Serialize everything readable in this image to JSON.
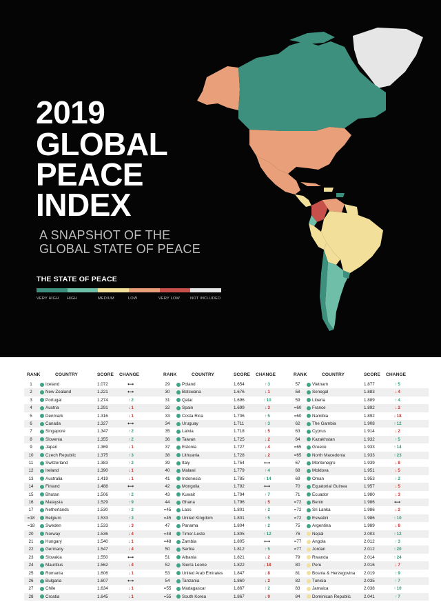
{
  "poster": {
    "title_lines": [
      "2019",
      "GLOBAL",
      "PEACE",
      "INDEX"
    ],
    "subtitle_lines": [
      "A SNAPSHOT OF THE",
      "GLOBAL STATE OF PEACE"
    ],
    "state_title": "THE STATE OF PEACE",
    "legend": [
      {
        "label": "VERY HIGH",
        "color": "#3d8f7e"
      },
      {
        "label": "HIGH",
        "color": "#6fbfa8"
      },
      {
        "label": "MEDIUM",
        "color": "#f2df9a"
      },
      {
        "label": "LOW",
        "color": "#e9a07a"
      },
      {
        "label": "VERY LOW",
        "color": "#c7504a"
      },
      {
        "label": "NOT INCLUDED",
        "color": "#e6e6e6"
      }
    ]
  },
  "table": {
    "headers": {
      "rank": "RANK",
      "country": "COUNTRY",
      "score": "SCORE",
      "change": "CHANGE"
    },
    "symbols": {
      "up": "↑",
      "down": "↓",
      "same": "⟷"
    },
    "columns": [
      [
        {
          "rank": "1",
          "country": "Iceland",
          "score": "1.072",
          "dir": "same",
          "amt": "",
          "level": "vh"
        },
        {
          "rank": "2",
          "country": "New Zealand",
          "score": "1.221",
          "dir": "same",
          "amt": "",
          "level": "vh"
        },
        {
          "rank": "3",
          "country": "Portugal",
          "score": "1.274",
          "dir": "up",
          "amt": "2",
          "level": "vh"
        },
        {
          "rank": "4",
          "country": "Austria",
          "score": "1.291",
          "dir": "down",
          "amt": "1",
          "level": "vh"
        },
        {
          "rank": "5",
          "country": "Denmark",
          "score": "1.316",
          "dir": "down",
          "amt": "1",
          "level": "vh"
        },
        {
          "rank": "6",
          "country": "Canada",
          "score": "1.327",
          "dir": "same",
          "amt": "",
          "level": "vh"
        },
        {
          "rank": "7",
          "country": "Singapore",
          "score": "1.347",
          "dir": "up",
          "amt": "2",
          "level": "vh"
        },
        {
          "rank": "8",
          "country": "Slovenia",
          "score": "1.355",
          "dir": "up",
          "amt": "2",
          "level": "vh"
        },
        {
          "rank": "9",
          "country": "Japan",
          "score": "1.369",
          "dir": "down",
          "amt": "1",
          "level": "vh"
        },
        {
          "rank": "10",
          "country": "Czech Republic",
          "score": "1.375",
          "dir": "up",
          "amt": "3",
          "level": "vh"
        },
        {
          "rank": "11",
          "country": "Switzerland",
          "score": "1.383",
          "dir": "up",
          "amt": "2",
          "level": "vh"
        },
        {
          "rank": "12",
          "country": "Ireland",
          "score": "1.390",
          "dir": "down",
          "amt": "1",
          "level": "vh"
        },
        {
          "rank": "13",
          "country": "Australia",
          "score": "1.419",
          "dir": "down",
          "amt": "1",
          "level": "vh"
        },
        {
          "rank": "14",
          "country": "Finland",
          "score": "1.488",
          "dir": "same",
          "amt": "",
          "level": "vh"
        },
        {
          "rank": "15",
          "country": "Bhutan",
          "score": "1.506",
          "dir": "up",
          "amt": "2",
          "level": "vh"
        },
        {
          "rank": "16",
          "country": "Malaysia",
          "score": "1.529",
          "dir": "up",
          "amt": "9",
          "level": "vh"
        },
        {
          "rank": "17",
          "country": "Netherlands",
          "score": "1.530",
          "dir": "up",
          "amt": "2",
          "level": "vh"
        },
        {
          "rank": "=18",
          "country": "Belgium",
          "score": "1.533",
          "dir": "up",
          "amt": "3",
          "level": "vh"
        },
        {
          "rank": "=18",
          "country": "Sweden",
          "score": "1.533",
          "dir": "down",
          "amt": "3",
          "level": "vh"
        },
        {
          "rank": "20",
          "country": "Norway",
          "score": "1.536",
          "dir": "down",
          "amt": "4",
          "level": "vh"
        },
        {
          "rank": "21",
          "country": "Hungary",
          "score": "1.540",
          "dir": "down",
          "amt": "1",
          "level": "vh"
        },
        {
          "rank": "22",
          "country": "Germany",
          "score": "1.547",
          "dir": "down",
          "amt": "4",
          "level": "vh"
        },
        {
          "rank": "23",
          "country": "Slovakia",
          "score": "1.550",
          "dir": "same",
          "amt": "",
          "level": "vh"
        },
        {
          "rank": "24",
          "country": "Mauritius",
          "score": "1.562",
          "dir": "down",
          "amt": "4",
          "level": "vh"
        },
        {
          "rank": "25",
          "country": "Romania",
          "score": "1.606",
          "dir": "down",
          "amt": "1",
          "level": "vh"
        },
        {
          "rank": "26",
          "country": "Bulgaria",
          "score": "1.607",
          "dir": "same",
          "amt": "",
          "level": "vh"
        },
        {
          "rank": "27",
          "country": "Chile",
          "score": "1.634",
          "dir": "down",
          "amt": "1",
          "level": "vh"
        },
        {
          "rank": "28",
          "country": "Croatia",
          "score": "1.645",
          "dir": "down",
          "amt": "1",
          "level": "vh"
        }
      ],
      [
        {
          "rank": "29",
          "country": "Poland",
          "score": "1.654",
          "dir": "up",
          "amt": "3",
          "level": "vh"
        },
        {
          "rank": "30",
          "country": "Botswana",
          "score": "1.676",
          "dir": "down",
          "amt": "1",
          "level": "vh"
        },
        {
          "rank": "31",
          "country": "Qatar",
          "score": "1.696",
          "dir": "up",
          "amt": "10",
          "level": "vh"
        },
        {
          "rank": "32",
          "country": "Spain",
          "score": "1.699",
          "dir": "down",
          "amt": "3",
          "level": "vh"
        },
        {
          "rank": "33",
          "country": "Costa Rica",
          "score": "1.706",
          "dir": "up",
          "amt": "5",
          "level": "vh"
        },
        {
          "rank": "34",
          "country": "Uruguay",
          "score": "1.711",
          "dir": "up",
          "amt": "3",
          "level": "vh"
        },
        {
          "rank": "35",
          "country": "Latvia",
          "score": "1.718",
          "dir": "down",
          "amt": "5",
          "level": "vh"
        },
        {
          "rank": "36",
          "country": "Taiwan",
          "score": "1.725",
          "dir": "down",
          "amt": "2",
          "level": "vh"
        },
        {
          "rank": "37",
          "country": "Estonia",
          "score": "1.727",
          "dir": "down",
          "amt": "4",
          "level": "vh"
        },
        {
          "rank": "38",
          "country": "Lithuania",
          "score": "1.728",
          "dir": "down",
          "amt": "2",
          "level": "vh"
        },
        {
          "rank": "39",
          "country": "Italy",
          "score": "1.754",
          "dir": "same",
          "amt": "",
          "level": "vh"
        },
        {
          "rank": "40",
          "country": "Malawi",
          "score": "1.779",
          "dir": "up",
          "amt": "4",
          "level": "vh"
        },
        {
          "rank": "41",
          "country": "Indonesia",
          "score": "1.785",
          "dir": "up",
          "amt": "14",
          "level": "vh"
        },
        {
          "rank": "42",
          "country": "Mongolia",
          "score": "1.792",
          "dir": "same",
          "amt": "",
          "level": "vh"
        },
        {
          "rank": "43",
          "country": "Kuwait",
          "score": "1.794",
          "dir": "up",
          "amt": "7",
          "level": "vh"
        },
        {
          "rank": "44",
          "country": "Ghana",
          "score": "1.796",
          "dir": "down",
          "amt": "5",
          "level": "vh"
        },
        {
          "rank": "=45",
          "country": "Laos",
          "score": "1.801",
          "dir": "up",
          "amt": "2",
          "level": "vh"
        },
        {
          "rank": "=45",
          "country": "United Kingdom",
          "score": "1.801",
          "dir": "up",
          "amt": "5",
          "level": "vh"
        },
        {
          "rank": "47",
          "country": "Panama",
          "score": "1.804",
          "dir": "up",
          "amt": "2",
          "level": "vh"
        },
        {
          "rank": "=48",
          "country": "Timor-Leste",
          "score": "1.805",
          "dir": "up",
          "amt": "12",
          "level": "vh"
        },
        {
          "rank": "=48",
          "country": "Zambia",
          "score": "1.805",
          "dir": "same",
          "amt": "",
          "level": "vh"
        },
        {
          "rank": "50",
          "country": "Serbia",
          "score": "1.812",
          "dir": "up",
          "amt": "5",
          "level": "vh"
        },
        {
          "rank": "51",
          "country": "Albania",
          "score": "1.821",
          "dir": "down",
          "amt": "2",
          "level": "vh"
        },
        {
          "rank": "52",
          "country": "Sierra Leone",
          "score": "1.822",
          "dir": "down",
          "amt": "18",
          "level": "vh"
        },
        {
          "rank": "53",
          "country": "United Arab Emirates",
          "score": "1.847",
          "dir": "down",
          "amt": "8",
          "level": "vh"
        },
        {
          "rank": "54",
          "country": "Tanzania",
          "score": "1.860",
          "dir": "down",
          "amt": "2",
          "level": "vh"
        },
        {
          "rank": "=55",
          "country": "Madagascar",
          "score": "1.867",
          "dir": "up",
          "amt": "2",
          "level": "vh"
        },
        {
          "rank": "=55",
          "country": "South Korea",
          "score": "1.867",
          "dir": "down",
          "amt": "9",
          "level": "vh"
        }
      ],
      [
        {
          "rank": "57",
          "country": "Vietnam",
          "score": "1.877",
          "dir": "up",
          "amt": "5",
          "level": "vh"
        },
        {
          "rank": "58",
          "country": "Senegal",
          "score": "1.883",
          "dir": "down",
          "amt": "4",
          "level": "vh"
        },
        {
          "rank": "59",
          "country": "Liberia",
          "score": "1.889",
          "dir": "up",
          "amt": "4",
          "level": "vh"
        },
        {
          "rank": "=60",
          "country": "France",
          "score": "1.892",
          "dir": "down",
          "amt": "2",
          "level": "vh"
        },
        {
          "rank": "=60",
          "country": "Namibia",
          "score": "1.892",
          "dir": "down",
          "amt": "18",
          "level": "vh"
        },
        {
          "rank": "62",
          "country": "The Gambia",
          "score": "1.908",
          "dir": "up",
          "amt": "12",
          "level": "vh"
        },
        {
          "rank": "63",
          "country": "Cyprus",
          "score": "1.914",
          "dir": "down",
          "amt": "2",
          "level": "vh"
        },
        {
          "rank": "64",
          "country": "Kazakhstan",
          "score": "1.932",
          "dir": "up",
          "amt": "5",
          "level": "vh"
        },
        {
          "rank": "=65",
          "country": "Greece",
          "score": "1.933",
          "dir": "up",
          "amt": "14",
          "level": "vh"
        },
        {
          "rank": "=65",
          "country": "North Macedonia",
          "score": "1.933",
          "dir": "up",
          "amt": "23",
          "level": "vh"
        },
        {
          "rank": "67",
          "country": "Montenegro",
          "score": "1.939",
          "dir": "down",
          "amt": "8",
          "level": "vh"
        },
        {
          "rank": "68",
          "country": "Moldova",
          "score": "1.951",
          "dir": "down",
          "amt": "5",
          "level": "vh"
        },
        {
          "rank": "69",
          "country": "Oman",
          "score": "1.953",
          "dir": "up",
          "amt": "2",
          "level": "vh"
        },
        {
          "rank": "70",
          "country": "Equatorial Guinea",
          "score": "1.957",
          "dir": "down",
          "amt": "5",
          "level": "vh"
        },
        {
          "rank": "71",
          "country": "Ecuador",
          "score": "1.980",
          "dir": "down",
          "amt": "3",
          "level": "vh"
        },
        {
          "rank": "=72",
          "country": "Benin",
          "score": "1.986",
          "dir": "same",
          "amt": "",
          "level": "vh"
        },
        {
          "rank": "=72",
          "country": "Sri Lanka",
          "score": "1.986",
          "dir": "down",
          "amt": "2",
          "level": "vh"
        },
        {
          "rank": "=72",
          "country": "Eswatini",
          "score": "1.986",
          "dir": "up",
          "amt": "10",
          "level": "vh"
        },
        {
          "rank": "75",
          "country": "Argentina",
          "score": "1.989",
          "dir": "down",
          "amt": "8",
          "level": "vh"
        },
        {
          "rank": "76",
          "country": "Nepal",
          "score": "2.003",
          "dir": "up",
          "amt": "12",
          "level": "m"
        },
        {
          "rank": "=77",
          "country": "Angola",
          "score": "2.012",
          "dir": "up",
          "amt": "3",
          "level": "m"
        },
        {
          "rank": "=77",
          "country": "Jordan",
          "score": "2.012",
          "dir": "up",
          "amt": "20",
          "level": "m"
        },
        {
          "rank": "79",
          "country": "Rwanda",
          "score": "2.014",
          "dir": "up",
          "amt": "24",
          "level": "m"
        },
        {
          "rank": "80",
          "country": "Peru",
          "score": "2.016",
          "dir": "down",
          "amt": "7",
          "level": "m"
        },
        {
          "rank": "81",
          "country": "Bosnia & Herzegovina",
          "score": "2.019",
          "dir": "up",
          "amt": "9",
          "level": "m"
        },
        {
          "rank": "82",
          "country": "Tunisia",
          "score": "2.035",
          "dir": "up",
          "amt": "7",
          "level": "m"
        },
        {
          "rank": "83",
          "country": "Jamaica",
          "score": "2.038",
          "dir": "up",
          "amt": "10",
          "level": "m"
        },
        {
          "rank": "84",
          "country": "Dominican Republic",
          "score": "2.041",
          "dir": "up",
          "amt": "7",
          "level": "m"
        }
      ]
    ]
  },
  "dot_colors": {
    "vh": "#3fa386",
    "m": "#f2df9a"
  },
  "change_colors": {
    "up": "#2f9a77",
    "down": "#c8312b",
    "same": "#111111"
  }
}
